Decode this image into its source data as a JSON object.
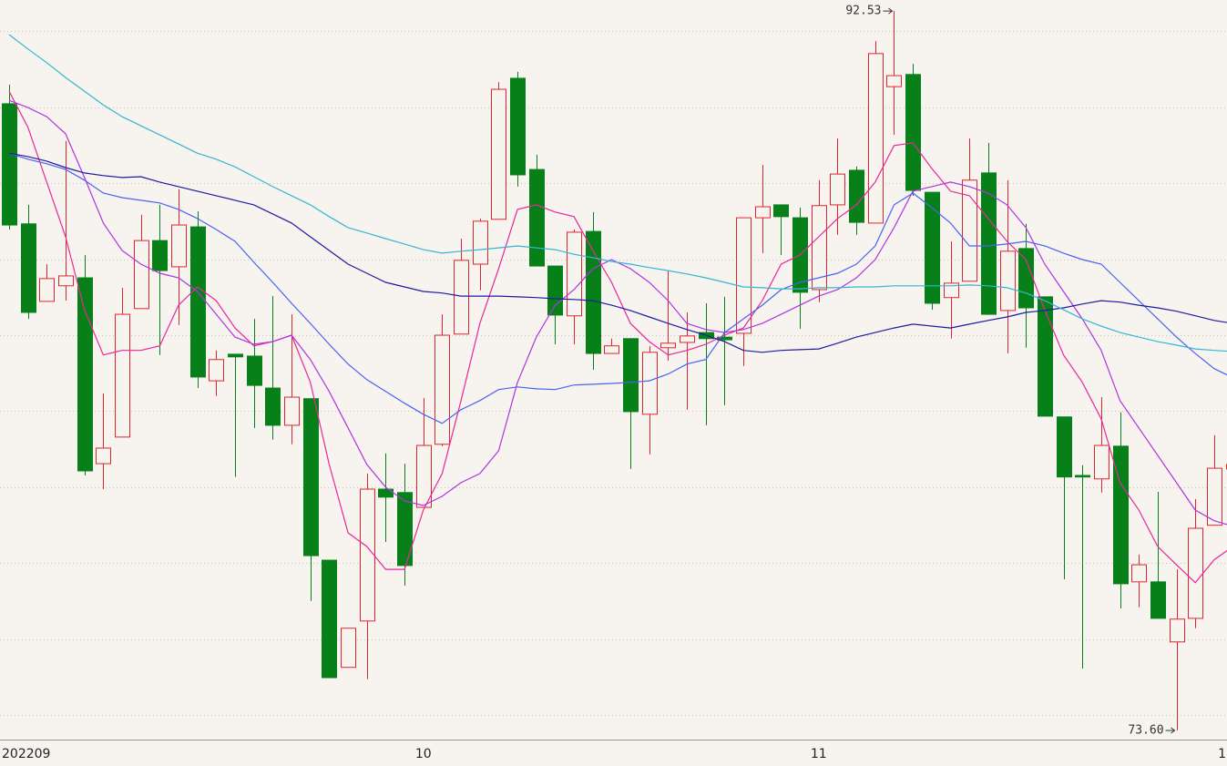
{
  "chart_data": {
    "type": "candlestick",
    "categories": [
      "202209",
      null,
      null,
      null,
      null,
      null,
      null,
      null,
      null,
      null,
      null,
      null,
      null,
      null,
      null,
      null,
      null,
      null,
      null,
      null,
      null,
      null,
      "10",
      null,
      null,
      null,
      null,
      null,
      null,
      null,
      null,
      null,
      null,
      null,
      null,
      null,
      null,
      null,
      null,
      null,
      null,
      null,
      null,
      "11",
      null,
      null,
      null,
      null,
      null,
      null,
      null,
      null,
      null,
      null,
      null,
      null,
      null,
      null,
      null,
      null,
      null,
      null,
      null,
      null,
      null,
      "1"
    ],
    "open": [
      90.09,
      86.93,
      84.89,
      85.3,
      85.51,
      80.62,
      81.32,
      84.7,
      86.49,
      85.8,
      86.85,
      82.8,
      83.5,
      83.45,
      82.61,
      81.63,
      82.33,
      78.08,
      75.26,
      76.48,
      79.95,
      79.86,
      79.47,
      81.13,
      84.03,
      85.87,
      87.05,
      90.76,
      88.36,
      85.82,
      84.51,
      86.73,
      83.52,
      83.91,
      81.92,
      83.67,
      83.81,
      84.07,
      83.95,
      84.05,
      87.09,
      87.43,
      87.09,
      85.2,
      87.43,
      88.34,
      86.95,
      90.54,
      90.86,
      87.76,
      84.99,
      85.42,
      88.27,
      84.65,
      86.28,
      85.01,
      81.85,
      80.31,
      80.22,
      81.08,
      77.51,
      77.51,
      75.93,
      76.55,
      79.0,
      80.48
    ],
    "high": [
      90.59,
      87.43,
      85.87,
      89.11,
      86.11,
      82.47,
      85.25,
      87.17,
      87.43,
      87.84,
      87.26,
      83.6,
      83.5,
      84.43,
      85.03,
      84.55,
      82.33,
      78.08,
      76.29,
      80.36,
      80.89,
      80.62,
      82.35,
      84.55,
      86.54,
      87.07,
      90.66,
      90.93,
      88.75,
      85.82,
      86.78,
      87.24,
      83.91,
      83.91,
      83.72,
      85.68,
      84.6,
      84.84,
      85.01,
      87.09,
      88.48,
      87.43,
      87.36,
      88.08,
      89.18,
      88.44,
      91.74,
      92.53,
      91.14,
      87.76,
      86.47,
      89.18,
      89.06,
      88.08,
      86.93,
      85.01,
      81.85,
      80.58,
      82.37,
      81.97,
      78.23,
      79.88,
      77.84,
      79.69,
      81.37,
      80.7
    ],
    "low": [
      86.78,
      84.43,
      84.89,
      84.91,
      80.31,
      79.95,
      81.32,
      84.7,
      83.48,
      84.27,
      82.61,
      82.4,
      80.27,
      81.56,
      81.25,
      81.13,
      77.01,
      74.99,
      75.26,
      74.95,
      78.56,
      77.41,
      79.47,
      81.08,
      84.03,
      85.18,
      87.05,
      87.91,
      85.82,
      83.76,
      83.76,
      83.09,
      83.52,
      80.48,
      80.86,
      83.33,
      82.04,
      81.63,
      82.16,
      83.19,
      86.16,
      86.11,
      84.17,
      84.87,
      86.64,
      86.64,
      86.95,
      89.27,
      87.67,
      84.67,
      83.91,
      85.42,
      84.55,
      83.52,
      83.67,
      81.87,
      77.58,
      75.23,
      79.86,
      76.81,
      76.84,
      76.55,
      73.6,
      76.29,
      79.0,
      80.3
    ],
    "close": [
      86.9,
      84.6,
      85.49,
      85.56,
      80.43,
      81.03,
      84.55,
      86.49,
      85.7,
      86.9,
      82.9,
      83.36,
      83.43,
      82.68,
      81.63,
      82.37,
      78.2,
      74.99,
      76.29,
      79.95,
      79.74,
      77.94,
      81.1,
      84.0,
      85.97,
      87.0,
      90.47,
      88.22,
      85.82,
      84.53,
      86.71,
      83.52,
      83.72,
      81.99,
      83.55,
      83.79,
      83.98,
      83.91,
      83.88,
      87.09,
      87.38,
      87.12,
      85.13,
      87.41,
      88.24,
      86.97,
      91.41,
      90.83,
      87.81,
      84.84,
      85.37,
      88.08,
      84.55,
      86.21,
      84.72,
      81.87,
      80.27,
      80.27,
      81.1,
      77.46,
      77.96,
      76.55,
      76.53,
      78.92,
      80.5,
      80.6
    ],
    "up_color": "#e0262c",
    "down_color": "#07801a",
    "lines": [
      {
        "color": "#e8289a",
        "values": [
          90.42,
          89.47,
          88.03,
          86.59,
          84.67,
          83.48,
          83.6,
          83.6,
          83.72,
          84.79,
          85.27,
          84.91,
          84.19,
          83.72,
          83.83,
          84.0,
          82.76,
          80.6,
          78.8,
          78.44,
          77.84,
          77.84,
          79.4,
          80.36,
          82.28,
          84.31,
          85.75,
          87.31,
          87.43,
          87.24,
          87.12,
          86.23,
          85.39,
          84.31,
          83.83,
          83.48,
          83.6,
          83.76,
          84.0,
          84.19,
          84.91,
          85.87,
          86.11,
          86.59,
          87.07,
          87.43,
          88.03,
          88.99,
          89.06,
          88.39,
          87.79,
          87.67,
          87.07,
          86.47,
          85.99,
          84.67,
          83.48,
          82.76,
          81.8,
          80.12,
          79.4,
          78.44,
          77.96,
          77.49,
          78.09,
          78.44
        ]
      },
      {
        "color": "#b233e0",
        "values": [
          90.18,
          89.99,
          89.75,
          89.3,
          88.15,
          86.95,
          86.23,
          85.87,
          85.63,
          85.51,
          85.15,
          84.55,
          83.95,
          83.76,
          83.83,
          84.0,
          83.36,
          82.52,
          81.56,
          80.6,
          80.0,
          79.64,
          79.52,
          79.76,
          80.12,
          80.36,
          80.96,
          82.76,
          83.95,
          84.79,
          85.2,
          85.75,
          85.99,
          85.75,
          85.39,
          84.91,
          84.31,
          84.15,
          84.07,
          84.15,
          84.31,
          84.55,
          84.79,
          85.03,
          85.2,
          85.51,
          85.99,
          86.83,
          87.79,
          87.91,
          88.03,
          87.91,
          87.74,
          87.43,
          86.83,
          85.87,
          85.15,
          84.43,
          83.6,
          82.28,
          81.56,
          80.84,
          80.12,
          79.4,
          79.12,
          78.97
        ]
      },
      {
        "color": "#4a62f0",
        "values": [
          88.79,
          88.63,
          88.51,
          88.36,
          88.08,
          87.74,
          87.62,
          87.55,
          87.48,
          87.31,
          87.07,
          86.78,
          86.47,
          85.92,
          85.39,
          84.84,
          84.31,
          83.76,
          83.24,
          82.83,
          82.52,
          82.21,
          81.92,
          81.68,
          82.04,
          82.28,
          82.57,
          82.64,
          82.59,
          82.57,
          82.69,
          82.71,
          82.73,
          82.76,
          82.8,
          82.98,
          83.24,
          83.36,
          84.07,
          84.43,
          84.79,
          85.2,
          85.39,
          85.51,
          85.63,
          85.87,
          86.35,
          87.43,
          87.74,
          87.36,
          86.95,
          86.35,
          86.35,
          86.4,
          86.47,
          86.35,
          86.16,
          85.99,
          85.87,
          85.39,
          84.91,
          84.43,
          83.95,
          83.52,
          83.12,
          82.88
        ]
      },
      {
        "color": "#1c1ca0",
        "values": [
          88.79,
          88.7,
          88.58,
          88.41,
          88.27,
          88.2,
          88.15,
          88.17,
          88.03,
          87.91,
          87.79,
          87.67,
          87.55,
          87.43,
          87.19,
          86.95,
          86.59,
          86.23,
          85.87,
          85.63,
          85.39,
          85.27,
          85.15,
          85.11,
          85.03,
          85.03,
          85.03,
          85.01,
          84.99,
          84.96,
          84.94,
          84.91,
          84.79,
          84.65,
          84.48,
          84.31,
          84.15,
          84.0,
          83.83,
          83.6,
          83.55,
          83.6,
          83.62,
          83.64,
          83.79,
          83.95,
          84.07,
          84.19,
          84.29,
          84.24,
          84.19,
          84.29,
          84.39,
          84.48,
          84.6,
          84.65,
          84.72,
          84.82,
          84.91,
          84.87,
          84.79,
          84.72,
          84.63,
          84.51,
          84.39,
          84.31
        ]
      },
      {
        "color": "#34b6d2",
        "values": [
          91.91,
          91.53,
          91.17,
          90.78,
          90.42,
          90.06,
          89.75,
          89.51,
          89.27,
          89.03,
          88.79,
          88.63,
          88.43,
          88.17,
          87.91,
          87.67,
          87.43,
          87.12,
          86.83,
          86.69,
          86.54,
          86.4,
          86.25,
          86.16,
          86.21,
          86.25,
          86.3,
          86.35,
          86.3,
          86.25,
          86.13,
          86.04,
          85.94,
          85.87,
          85.78,
          85.7,
          85.61,
          85.51,
          85.39,
          85.27,
          85.25,
          85.22,
          85.22,
          85.25,
          85.25,
          85.27,
          85.27,
          85.3,
          85.3,
          85.3,
          85.3,
          85.32,
          85.3,
          85.25,
          85.11,
          84.91,
          84.67,
          84.43,
          84.24,
          84.07,
          83.95,
          83.83,
          83.74,
          83.64,
          83.6,
          83.57
        ]
      }
    ],
    "annotations": [
      {
        "label": "92.53",
        "value": 92.53
      },
      {
        "label": "73.60",
        "value": 73.6
      }
    ],
    "ylim": [
      73.36,
      92.82
    ],
    "yticks": [
      74,
      76,
      78,
      80,
      82,
      84,
      86,
      88,
      90,
      92
    ],
    "grid": true
  }
}
